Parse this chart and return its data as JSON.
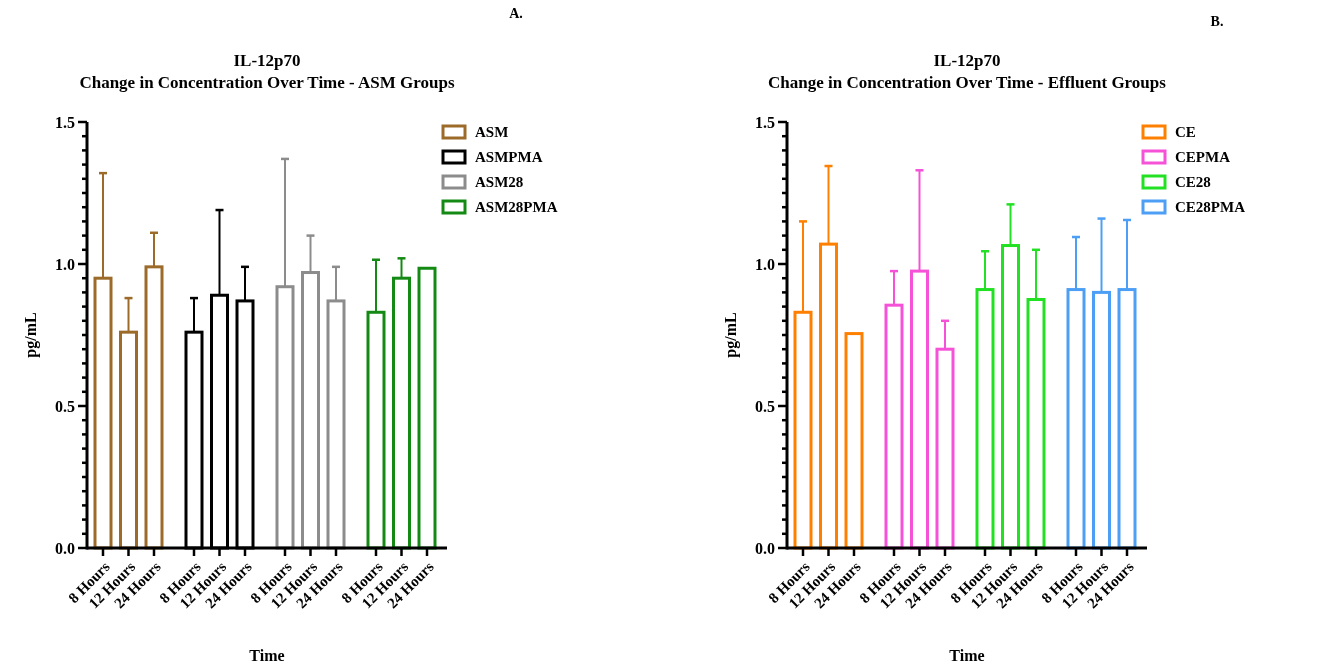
{
  "chart_data": [
    {
      "type": "bar",
      "title": "IL-12p70",
      "subtitle": "Change in Concentration Over Time - ASM Groups",
      "annotations": [
        "A."
      ],
      "xlabel": "Time",
      "ylabel": "pg/mL",
      "legend": "right",
      "categories": [
        "8 Hours",
        "12 Hours",
        "24 Hours",
        "8 Hours",
        "12 Hours",
        "24 Hours",
        "8 Hours",
        "12 Hours",
        "24 Hours",
        "8 Hours",
        "12 Hours",
        "24 Hours"
      ],
      "ylim": [
        0,
        1.5
      ],
      "yticks": [
        {
          "value": 0,
          "label": "0.0"
        },
        {
          "value": 0.05,
          "label": null
        },
        {
          "value": 0.1,
          "label": null
        },
        {
          "value": 0.15,
          "label": null
        },
        {
          "value": 0.2,
          "label": null
        },
        {
          "value": 0.25,
          "label": null
        },
        {
          "value": 0.3,
          "label": null
        },
        {
          "value": 0.35,
          "label": null
        },
        {
          "value": 0.4,
          "label": null
        },
        {
          "value": 0.45,
          "label": null
        },
        {
          "value": 0.5,
          "label": "0.5"
        },
        {
          "value": 0.55,
          "label": null
        },
        {
          "value": 0.6,
          "label": null
        },
        {
          "value": 0.65,
          "label": null
        },
        {
          "value": 0.7,
          "label": null
        },
        {
          "value": 0.75,
          "label": null
        },
        {
          "value": 0.8,
          "label": null
        },
        {
          "value": 0.85,
          "label": null
        },
        {
          "value": 0.9,
          "label": null
        },
        {
          "value": 0.95,
          "label": null
        },
        {
          "value": 1,
          "label": "1.0"
        },
        {
          "value": 1.05,
          "label": null
        },
        {
          "value": 1.1,
          "label": null
        },
        {
          "value": 1.15,
          "label": null
        },
        {
          "value": 1.2,
          "label": null
        },
        {
          "value": 1.25,
          "label": null
        },
        {
          "value": 1.3,
          "label": null
        },
        {
          "value": 1.35,
          "label": null
        },
        {
          "value": 1.4,
          "label": null
        },
        {
          "value": 1.45,
          "label": null
        },
        {
          "value": 1.5,
          "label": "1.5"
        }
      ],
      "grid": false,
      "series": [
        {
          "name": "ASM",
          "color": "#9c6b2a",
          "values": [
            0.95,
            0.76,
            0.99,
            null,
            null,
            null,
            null,
            null,
            null,
            null,
            null,
            null
          ],
          "errors": [
            [
              0.95,
              1.32
            ],
            [
              0.76,
              0.88
            ],
            [
              0.99,
              1.11
            ],
            null,
            null,
            null,
            null,
            null,
            null,
            null,
            null,
            null
          ]
        },
        {
          "name": "ASMPMA",
          "color": "#000000",
          "values": [
            null,
            null,
            null,
            0.76,
            0.89,
            0.87,
            null,
            null,
            null,
            null,
            null,
            null
          ],
          "errors": [
            null,
            null,
            null,
            [
              0.76,
              0.88
            ],
            [
              0.89,
              1.19
            ],
            [
              0.87,
              0.99
            ],
            null,
            null,
            null,
            null,
            null,
            null
          ]
        },
        {
          "name": "ASM28",
          "color": "#8c8c8c",
          "values": [
            null,
            null,
            null,
            null,
            null,
            null,
            0.92,
            0.97,
            0.87,
            null,
            null,
            null
          ],
          "errors": [
            null,
            null,
            null,
            null,
            null,
            null,
            [
              0.92,
              1.37
            ],
            [
              0.97,
              1.1
            ],
            [
              0.87,
              0.99
            ],
            null,
            null,
            null
          ]
        },
        {
          "name": "ASM28PMA",
          "color": "#148a14",
          "values": [
            null,
            null,
            null,
            null,
            null,
            null,
            null,
            null,
            null,
            0.83,
            0.95,
            0.985
          ],
          "errors": [
            null,
            null,
            null,
            null,
            null,
            null,
            null,
            null,
            null,
            [
              0.83,
              1.015
            ],
            [
              0.95,
              1.02
            ],
            null
          ]
        }
      ]
    },
    {
      "type": "bar",
      "title": "IL-12p70",
      "subtitle": "Change in Concentration Over Time - Effluent Groups",
      "annotations": [
        "B."
      ],
      "xlabel": "Time",
      "ylabel": "pg/mL",
      "legend": "right",
      "categories": [
        "8 Hours",
        "12 Hours",
        "24 Hours",
        "8 Hours",
        "12 Hours",
        "24 Hours",
        "8 Hours",
        "12 Hours",
        "24 Hours",
        "8 Hours",
        "12 Hours",
        "24 Hours"
      ],
      "ylim": [
        0,
        1.5
      ],
      "yticks": [
        {
          "value": 0,
          "label": "0.0"
        },
        {
          "value": 0.05,
          "label": null
        },
        {
          "value": 0.1,
          "label": null
        },
        {
          "value": 0.15,
          "label": null
        },
        {
          "value": 0.2,
          "label": null
        },
        {
          "value": 0.25,
          "label": null
        },
        {
          "value": 0.3,
          "label": null
        },
        {
          "value": 0.35,
          "label": null
        },
        {
          "value": 0.4,
          "label": null
        },
        {
          "value": 0.45,
          "label": null
        },
        {
          "value": 0.5,
          "label": "0.5"
        },
        {
          "value": 0.55,
          "label": null
        },
        {
          "value": 0.6,
          "label": null
        },
        {
          "value": 0.65,
          "label": null
        },
        {
          "value": 0.7,
          "label": null
        },
        {
          "value": 0.75,
          "label": null
        },
        {
          "value": 0.8,
          "label": null
        },
        {
          "value": 0.85,
          "label": null
        },
        {
          "value": 0.9,
          "label": null
        },
        {
          "value": 0.95,
          "label": null
        },
        {
          "value": 1,
          "label": "1.0"
        },
        {
          "value": 1.05,
          "label": null
        },
        {
          "value": 1.1,
          "label": null
        },
        {
          "value": 1.15,
          "label": null
        },
        {
          "value": 1.2,
          "label": null
        },
        {
          "value": 1.25,
          "label": null
        },
        {
          "value": 1.3,
          "label": null
        },
        {
          "value": 1.35,
          "label": null
        },
        {
          "value": 1.4,
          "label": null
        },
        {
          "value": 1.45,
          "label": null
        },
        {
          "value": 1.5,
          "label": "1.5"
        }
      ],
      "grid": false,
      "series": [
        {
          "name": "CE",
          "color": "#ff8000",
          "values": [
            0.83,
            1.07,
            0.755,
            null,
            null,
            null,
            null,
            null,
            null,
            null,
            null,
            null
          ],
          "errors": [
            [
              0.83,
              1.15
            ],
            [
              1.07,
              1.345
            ],
            null,
            null,
            null,
            null,
            null,
            null,
            null,
            null,
            null,
            null
          ]
        },
        {
          "name": "CEPMA",
          "color": "#f552d8",
          "values": [
            null,
            null,
            null,
            0.855,
            0.975,
            0.7,
            null,
            null,
            null,
            null,
            null,
            null
          ],
          "errors": [
            null,
            null,
            null,
            [
              0.855,
              0.975
            ],
            [
              0.975,
              1.33
            ],
            [
              0.7,
              0.8
            ],
            null,
            null,
            null,
            null,
            null,
            null
          ]
        },
        {
          "name": "CE28",
          "color": "#22e022",
          "values": [
            null,
            null,
            null,
            null,
            null,
            null,
            0.91,
            1.065,
            0.875,
            null,
            null,
            null
          ],
          "errors": [
            null,
            null,
            null,
            null,
            null,
            null,
            [
              0.91,
              1.045
            ],
            [
              1.065,
              1.21
            ],
            [
              0.875,
              1.05
            ],
            null,
            null,
            null
          ]
        },
        {
          "name": "CE28PMA",
          "color": "#4c9ff5",
          "values": [
            null,
            null,
            null,
            null,
            null,
            null,
            null,
            null,
            null,
            0.91,
            0.9,
            0.91
          ],
          "errors": [
            null,
            null,
            null,
            null,
            null,
            null,
            null,
            null,
            null,
            [
              0.91,
              1.095
            ],
            [
              0.9,
              1.16
            ],
            [
              0.91,
              1.155
            ]
          ]
        }
      ]
    }
  ]
}
